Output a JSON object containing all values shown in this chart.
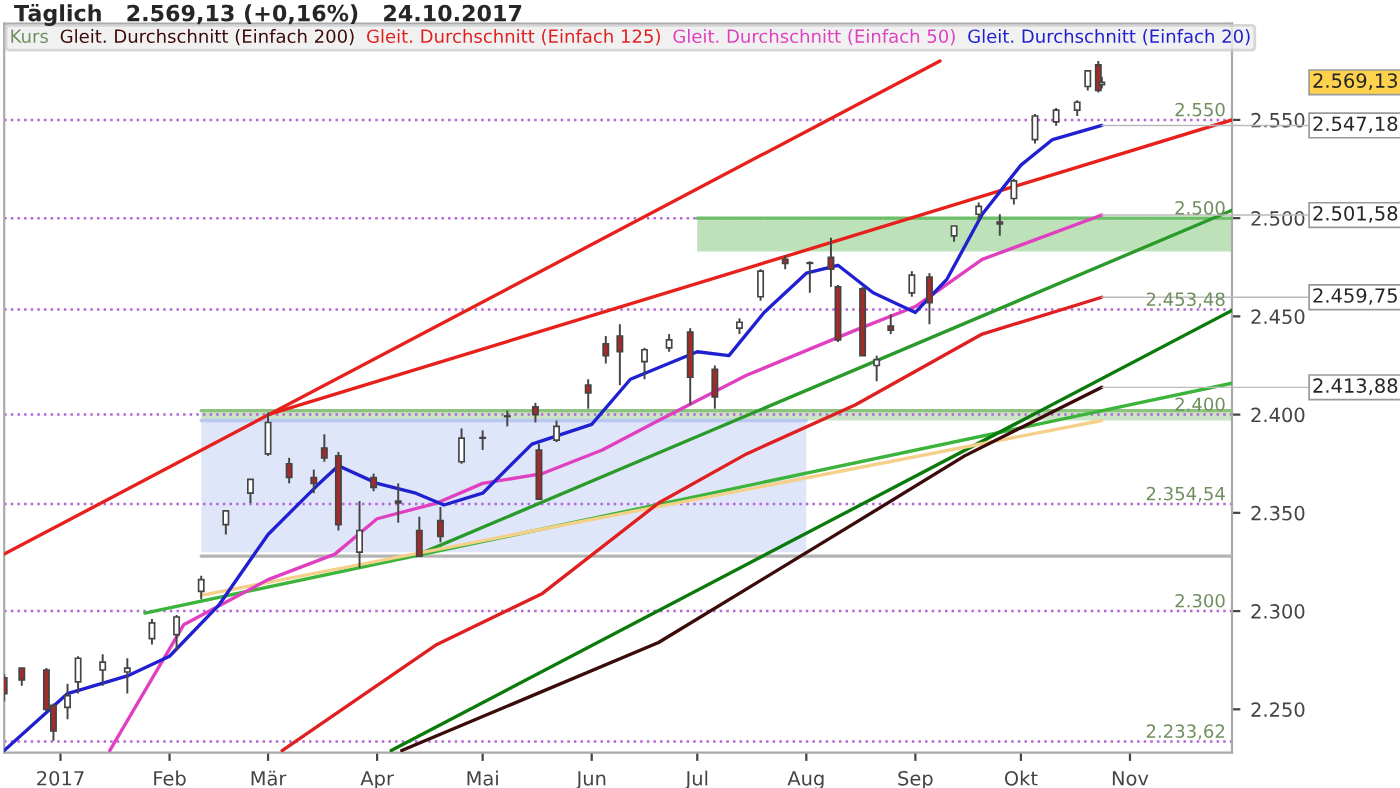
{
  "chart_data": {
    "type": "candlestick",
    "title": "Täglich   2.569,13 (+0,16%)   24.10.2017",
    "xlim": [
      "2016-12-16",
      "2017-11-30"
    ],
    "xticks": [
      {
        "value": "2017-01-01",
        "label": "2017"
      },
      {
        "value": "2017-02-01",
        "label": "Feb"
      },
      {
        "value": "2017-03-01",
        "label": "Mär"
      },
      {
        "value": "2017-04-01",
        "label": "Apr"
      },
      {
        "value": "2017-05-01",
        "label": "Mai"
      },
      {
        "value": "2017-06-01",
        "label": "Jun"
      },
      {
        "value": "2017-07-01",
        "label": "Jul"
      },
      {
        "value": "2017-08-01",
        "label": "Aug"
      },
      {
        "value": "2017-09-01",
        "label": "Sep"
      },
      {
        "value": "2017-10-01",
        "label": "Okt"
      },
      {
        "value": "2017-11-01",
        "label": "Nov"
      }
    ],
    "ylim": [
      2228,
      2599
    ],
    "yticks": [
      {
        "value": 2250,
        "label": "2.250"
      },
      {
        "value": 2300,
        "label": "2.300"
      },
      {
        "value": 2350,
        "label": "2.350"
      },
      {
        "value": 2400,
        "label": "2.400"
      },
      {
        "value": 2450,
        "label": "2.450"
      },
      {
        "value": 2500,
        "label": "2.500"
      },
      {
        "value": 2550,
        "label": "2.550"
      }
    ],
    "legend": "top left",
    "grid": false,
    "series": [
      {
        "type": "line",
        "x": [
          "2017-02-10",
          "2017-08-01"
        ],
        "values": [
          2397,
          2397
        ],
        "lower": [
          2330,
          2330
        ],
        "upper": [
          2397,
          2397
        ],
        "color": "#b9c8f2"
      },
      {
        "type": "line",
        "x": [
          "2017-02-10",
          "2017-11-30"
        ],
        "values": [
          2402,
          2402
        ],
        "lower": [
          2397,
          2397
        ],
        "upper": [
          2402,
          2402
        ],
        "color": "#8cc47e"
      },
      {
        "type": "line",
        "x": [
          "2017-02-10",
          "2017-11-30"
        ],
        "values": [
          2328,
          2328
        ],
        "color": "#b4b4b4"
      },
      {
        "type": "line",
        "x": [
          "2017-07-01",
          "2017-11-30"
        ],
        "values": [
          2500,
          2500
        ],
        "lower": [
          2483,
          2483
        ],
        "upper": [
          2500,
          2500
        ],
        "color": "#6cbf66"
      },
      {
        "type": "line",
        "x": [
          "2016-12-16",
          "2017-09-08"
        ],
        "values": [
          2329,
          2580
        ],
        "color": "#e8201c"
      },
      {
        "type": "line",
        "x": [
          "2017-03-01",
          "2017-11-30"
        ],
        "values": [
          2400,
          2550
        ],
        "color": "#e8201c"
      },
      {
        "type": "line",
        "x": [
          "2017-01-25",
          "2017-11-30"
        ],
        "values": [
          2299,
          2416
        ],
        "color": "#3cb43c"
      },
      {
        "type": "line",
        "x": [
          "2017-04-13",
          "2017-11-30"
        ],
        "values": [
          2329,
          2504
        ],
        "color": "#2a9a2a"
      },
      {
        "type": "line",
        "x": [
          "2017-04-05",
          "2017-11-30"
        ],
        "values": [
          2229,
          2453
        ],
        "color": "#0a7a0a"
      },
      {
        "type": "line",
        "x": [
          "2017-02-10",
          "2017-10-24"
        ],
        "values": [
          2308,
          2397
        ],
        "color": "#f5d08a"
      },
      {
        "type": "line",
        "name": "Gleit. Durchschnitt (Einfach 200)",
        "color": "#3b0a0a",
        "x": [
          "2017-04-08",
          "2017-06-20",
          "2017-08-15",
          "2017-09-15",
          "2017-10-24"
        ],
        "values": [
          2229,
          2284,
          2345,
          2379,
          2413.88
        ],
        "value_labels": [
          null,
          null,
          null,
          null,
          "2.413,88"
        ]
      },
      {
        "type": "line",
        "name": "Gleit. Durchschnitt (Einfach 125)",
        "color": "#e02020",
        "x": [
          "2017-03-05",
          "2017-04-18",
          "2017-05-18",
          "2017-06-20",
          "2017-07-15",
          "2017-08-15",
          "2017-09-20",
          "2017-10-24"
        ],
        "values": [
          2229,
          2283,
          2309,
          2355,
          2380,
          2405,
          2441,
          2459.75
        ],
        "value_labels": [
          null,
          null,
          null,
          null,
          null,
          null,
          null,
          "2.459,75"
        ]
      },
      {
        "type": "line",
        "name": "Gleit. Durchschnitt (Einfach 50)",
        "color": "#e040c0",
        "x": [
          "2017-01-15",
          "2017-02-05",
          "2017-03-01",
          "2017-03-20",
          "2017-04-01",
          "2017-04-18",
          "2017-05-01",
          "2017-05-18",
          "2017-06-04",
          "2017-06-20",
          "2017-07-15",
          "2017-08-15",
          "2017-09-01",
          "2017-09-20",
          "2017-10-24"
        ],
        "values": [
          2229,
          2293,
          2316,
          2329,
          2347,
          2355,
          2365,
          2370,
          2382,
          2397,
          2420,
          2443,
          2455,
          2479,
          2501.58
        ],
        "value_labels": [
          null,
          null,
          null,
          null,
          null,
          null,
          null,
          null,
          null,
          null,
          null,
          null,
          null,
          null,
          "2.501,58"
        ]
      },
      {
        "type": "line",
        "name": "Gleit. Durchschnitt (Einfach 20)",
        "color": "#2020d0",
        "x": [
          "2016-12-16",
          "2017-01-03",
          "2017-01-20",
          "2017-02-01",
          "2017-02-15",
          "2017-03-01",
          "2017-03-15",
          "2017-03-21",
          "2017-04-01",
          "2017-04-12",
          "2017-04-20",
          "2017-05-01",
          "2017-05-15",
          "2017-06-01",
          "2017-06-12",
          "2017-07-01",
          "2017-07-10",
          "2017-07-20",
          "2017-08-01",
          "2017-08-10",
          "2017-08-20",
          "2017-09-01",
          "2017-09-10",
          "2017-09-20",
          "2017-10-01",
          "2017-10-10",
          "2017-10-24"
        ],
        "values": [
          2229,
          2258,
          2267,
          2277,
          2303,
          2339,
          2364,
          2374,
          2365,
          2360,
          2354,
          2360,
          2385,
          2395,
          2418,
          2432,
          2430,
          2452,
          2472,
          2476,
          2462,
          2452,
          2469,
          2502,
          2527,
          2540,
          2547.18
        ],
        "value_labels": [
          null,
          null,
          null,
          null,
          null,
          null,
          null,
          null,
          null,
          null,
          null,
          null,
          null,
          null,
          null,
          null,
          null,
          null,
          null,
          null,
          null,
          null,
          null,
          null,
          null,
          null,
          "2.547,18"
        ]
      }
    ],
    "legend_title": "Kurs",
    "color": "#444444",
    "colors": [
      "#a52a2a",
      "#a52a2a",
      "#a52a2a",
      "#a52a2a",
      "#ffffff",
      "#ffffff",
      "#ffffff",
      "#ffffff",
      "#ffffff",
      "#ffffff",
      "#ffffff",
      "#ffffff",
      "#ffffff",
      "#ffffff",
      "#a52a2a",
      "#a52a2a",
      "#a52a2a",
      "#a52a2a",
      "#ffffff",
      "#a52a2a",
      "#a52a2a",
      "#a52a2a",
      "#a52a2a",
      "#ffffff",
      "#ffffff",
      "#ffffff",
      "#a52a2a",
      "#a52a2a",
      "#ffffff",
      "#a52a2a",
      "#a52a2a",
      "#a52a2a",
      "#ffffff",
      "#ffffff",
      "#a52a2a",
      "#a52a2a",
      "#ffffff",
      "#ffffff",
      "#a52a2a",
      "#ffffff",
      "#a52a2a",
      "#a52a2a",
      "#a52a2a",
      "#ffffff",
      "#a52a2a",
      "#ffffff",
      "#a52a2a",
      "#ffffff",
      "#ffffff",
      "#a52a2a",
      "#ffffff",
      "#ffffff",
      "#ffffff",
      "#ffffff",
      "#ffffff",
      "#a52a2a",
      "#ffffff"
    ],
    "x": [
      "2016-12-16",
      "2016-12-21",
      "2016-12-28",
      "2016-12-30",
      "2017-01-03",
      "2017-01-06",
      "2017-01-13",
      "2017-01-20",
      "2017-01-27",
      "2017-02-03",
      "2017-02-10",
      "2017-02-17",
      "2017-02-24",
      "2017-03-01",
      "2017-03-07",
      "2017-03-14",
      "2017-03-17",
      "2017-03-21",
      "2017-03-27",
      "2017-03-31",
      "2017-04-07",
      "2017-04-13",
      "2017-04-19",
      "2017-04-25",
      "2017-05-01",
      "2017-05-08",
      "2017-05-16",
      "2017-05-17",
      "2017-05-22",
      "2017-05-31",
      "2017-06-05",
      "2017-06-09",
      "2017-06-16",
      "2017-06-23",
      "2017-06-29",
      "2017-07-06",
      "2017-07-13",
      "2017-07-19",
      "2017-07-26",
      "2017-08-02",
      "2017-08-08",
      "2017-08-10",
      "2017-08-17",
      "2017-08-21",
      "2017-08-25",
      "2017-08-31",
      "2017-09-05",
      "2017-09-12",
      "2017-09-19",
      "2017-09-25",
      "2017-09-29",
      "2017-10-05",
      "2017-10-11",
      "2017-10-17",
      "2017-10-20",
      "2017-10-23",
      "2017-10-24"
    ],
    "ohlc": [
      [
        2266,
        2268,
        2254,
        2258
      ],
      [
        2271,
        2271,
        2262,
        2265
      ],
      [
        2270,
        2271,
        2249,
        2250
      ],
      [
        2252,
        2253,
        2234,
        2239
      ],
      [
        2251,
        2263,
        2245,
        2257
      ],
      [
        2264,
        2277,
        2258,
        2276
      ],
      [
        2270,
        2278,
        2262,
        2274
      ],
      [
        2269,
        2276,
        2258,
        2271
      ],
      [
        2286,
        2296,
        2283,
        2294
      ],
      [
        2288,
        2298,
        2280,
        2297
      ],
      [
        2310,
        2318,
        2306,
        2316
      ],
      [
        2344,
        2351,
        2339,
        2351
      ],
      [
        2360,
        2367,
        2355,
        2367
      ],
      [
        2380,
        2401,
        2379,
        2396
      ],
      [
        2375,
        2378,
        2365,
        2368
      ],
      [
        2368,
        2372,
        2360,
        2365
      ],
      [
        2383,
        2390,
        2376,
        2378
      ],
      [
        2379,
        2381,
        2341,
        2344
      ],
      [
        2330,
        2356,
        2322,
        2341
      ],
      [
        2368,
        2370,
        2361,
        2363
      ],
      [
        2356,
        2365,
        2345,
        2355
      ],
      [
        2341,
        2348,
        2328,
        2328
      ],
      [
        2346,
        2353,
        2335,
        2338
      ],
      [
        2376,
        2393,
        2375,
        2388
      ],
      [
        2388,
        2392,
        2382,
        2388
      ],
      [
        2399,
        2402,
        2394,
        2399
      ],
      [
        2404,
        2406,
        2396,
        2400
      ],
      [
        2382,
        2385,
        2357,
        2357
      ],
      [
        2387,
        2397,
        2386,
        2394
      ],
      [
        2415,
        2418,
        2403,
        2411
      ],
      [
        2436,
        2440,
        2426,
        2430
      ],
      [
        2440,
        2446,
        2415,
        2432
      ],
      [
        2427,
        2434,
        2418,
        2433
      ],
      [
        2434,
        2441,
        2432,
        2438
      ],
      [
        2442,
        2444,
        2405,
        2419
      ],
      [
        2423,
        2425,
        2403,
        2409
      ],
      [
        2444,
        2449,
        2441,
        2447
      ],
      [
        2460,
        2474,
        2458,
        2473
      ],
      [
        2479,
        2481,
        2474,
        2477
      ],
      [
        2477,
        2478,
        2462,
        2477
      ],
      [
        2480,
        2490,
        2465,
        2474
      ],
      [
        2465,
        2466,
        2437,
        2438
      ],
      [
        2464,
        2465,
        2430,
        2430
      ],
      [
        2425,
        2430,
        2417,
        2428
      ],
      [
        2445,
        2451,
        2441,
        2443
      ],
      [
        2462,
        2473,
        2460,
        2471
      ],
      [
        2470,
        2472,
        2446,
        2457
      ],
      [
        2491,
        2496,
        2488,
        2496
      ],
      [
        2502,
        2508,
        2499,
        2506
      ],
      [
        2498,
        2502,
        2491,
        2497
      ],
      [
        2510,
        2520,
        2507,
        2519
      ],
      [
        2540,
        2553,
        2538,
        2552
      ],
      [
        2549,
        2556,
        2547,
        2555
      ],
      [
        2555,
        2560,
        2552,
        2559
      ],
      [
        2567,
        2575,
        2565,
        2575
      ],
      [
        2578,
        2580,
        2564,
        2565
      ],
      [
        2568,
        2572,
        2566,
        2569.13
      ]
    ],
    "ref_lines": [
      {
        "axis": "y",
        "value": 2550,
        "label": "2.550",
        "color": "#b366d9",
        "line_style": "dotted"
      },
      {
        "axis": "y",
        "value": 2500,
        "label": "2.500",
        "color": "#b366d9",
        "line_style": "dotted"
      },
      {
        "axis": "y",
        "value": 2453.48,
        "label": "2.453,48",
        "color": "#b366d9",
        "line_style": "dotted"
      },
      {
        "axis": "y",
        "value": 2400,
        "label": "2.400",
        "color": "#b366d9",
        "line_style": "dotted"
      },
      {
        "axis": "y",
        "value": 2354.54,
        "label": "2.354,54",
        "color": "#b366d9",
        "line_style": "dotted"
      },
      {
        "axis": "y",
        "value": 2300,
        "label": "2.300",
        "color": "#b366d9",
        "line_style": "dotted"
      },
      {
        "axis": "y",
        "value": 2233.62,
        "label": "2.233,62",
        "color": "#b366d9",
        "line_style": "dotted"
      }
    ],
    "annotations": [
      "2.569,13"
    ]
  }
}
